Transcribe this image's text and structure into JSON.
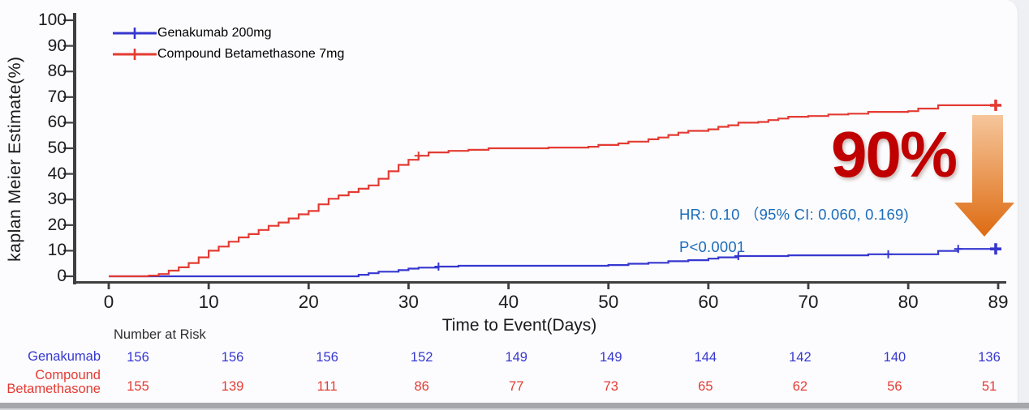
{
  "annotations": {
    "hr": "HR: 0.10 （95% CI: 0.060, 0.169)",
    "p_value": "P<0.0001",
    "big_percent": "90%",
    "hr_color": "#1c6cba",
    "big_percent_color": "#c00000"
  },
  "chart_data": {
    "type": "line",
    "subtype": "kaplan-meier-cumulative-incidence-steps",
    "title": "",
    "xlabel": "Time to Event(Days)",
    "ylabel": "kaplan Meier Estimate(%)",
    "xlim": [
      0,
      89
    ],
    "ylim": [
      0,
      100
    ],
    "x_ticks": [
      0,
      10,
      20,
      30,
      40,
      50,
      60,
      70,
      80,
      89
    ],
    "y_ticks": [
      0,
      10,
      20,
      30,
      40,
      50,
      60,
      70,
      80,
      90,
      100
    ],
    "grid": false,
    "legend_position": "top-left",
    "series": [
      {
        "name": "Genakumab 200mg",
        "color": "#3637cf",
        "step_points": [
          [
            0,
            0
          ],
          [
            25,
            0.6
          ],
          [
            26,
            1.2
          ],
          [
            27,
            1.8
          ],
          [
            29,
            2.4
          ],
          [
            30,
            3.0
          ],
          [
            31,
            3.4
          ],
          [
            33,
            3.8
          ],
          [
            35,
            4.1
          ],
          [
            50,
            4.4
          ],
          [
            52,
            4.9
          ],
          [
            54,
            5.3
          ],
          [
            56,
            5.9
          ],
          [
            58,
            6.3
          ],
          [
            60,
            6.9
          ],
          [
            61,
            7.4
          ],
          [
            63,
            7.9
          ],
          [
            68,
            8.2
          ],
          [
            76,
            8.6
          ],
          [
            83,
            9.9
          ],
          [
            85,
            10.7
          ],
          [
            89,
            10.7
          ]
        ],
        "censor_days": [
          33,
          63,
          78,
          85
        ],
        "end_value_pct": 10.7
      },
      {
        "name": "Compound Betamethasone 7mg",
        "color": "#e33b33",
        "step_points": [
          [
            0,
            0
          ],
          [
            4,
            0.3
          ],
          [
            5,
            0.9
          ],
          [
            6,
            2.2
          ],
          [
            7,
            3.5
          ],
          [
            8,
            5.2
          ],
          [
            9,
            7.4
          ],
          [
            10,
            10.0
          ],
          [
            11,
            11.6
          ],
          [
            12,
            13.5
          ],
          [
            13,
            15.2
          ],
          [
            14,
            16.5
          ],
          [
            15,
            18.1
          ],
          [
            16,
            19.7
          ],
          [
            17,
            21.0
          ],
          [
            18,
            22.6
          ],
          [
            19,
            24.2
          ],
          [
            20,
            25.5
          ],
          [
            21,
            28.1
          ],
          [
            22,
            30.3
          ],
          [
            23,
            31.6
          ],
          [
            24,
            32.9
          ],
          [
            25,
            34.2
          ],
          [
            26,
            35.5
          ],
          [
            27,
            38.1
          ],
          [
            28,
            41.0
          ],
          [
            29,
            43.5
          ],
          [
            30,
            45.5
          ],
          [
            31,
            47.1
          ],
          [
            32,
            48.4
          ],
          [
            34,
            49.0
          ],
          [
            36,
            49.4
          ],
          [
            38,
            50.0
          ],
          [
            44,
            50.3
          ],
          [
            48,
            50.6
          ],
          [
            49,
            51.3
          ],
          [
            51,
            51.9
          ],
          [
            52,
            52.6
          ],
          [
            54,
            53.5
          ],
          [
            55,
            54.2
          ],
          [
            56,
            55.2
          ],
          [
            57,
            56.1
          ],
          [
            58,
            56.8
          ],
          [
            60,
            57.4
          ],
          [
            61,
            58.4
          ],
          [
            62,
            59.0
          ],
          [
            63,
            60.0
          ],
          [
            65,
            60.3
          ],
          [
            66,
            61.0
          ],
          [
            67,
            61.6
          ],
          [
            68,
            62.3
          ],
          [
            70,
            62.6
          ],
          [
            72,
            63.2
          ],
          [
            74,
            63.5
          ],
          [
            76,
            64.2
          ],
          [
            80,
            64.5
          ],
          [
            81,
            65.5
          ],
          [
            83,
            66.8
          ],
          [
            89,
            66.8
          ]
        ],
        "censor_days": [
          31
        ],
        "end_value_pct": 66.8
      }
    ]
  },
  "risk_table": {
    "header": "Number at Risk",
    "time_points": [
      0,
      10,
      20,
      30,
      40,
      50,
      60,
      70,
      80,
      89
    ],
    "rows": [
      {
        "label_lines": [
          "Genakumab"
        ],
        "color": "#3637cf",
        "values": [
          "156",
          "156",
          "156",
          "152",
          "149",
          "149",
          "144",
          "142",
          "140",
          "136"
        ]
      },
      {
        "label_lines": [
          "Compound",
          "Betamethasone"
        ],
        "color": "#e33b33",
        "values": [
          "155",
          "139",
          "111",
          "86",
          "77",
          "73",
          "65",
          "62",
          "56",
          "51"
        ]
      }
    ]
  }
}
